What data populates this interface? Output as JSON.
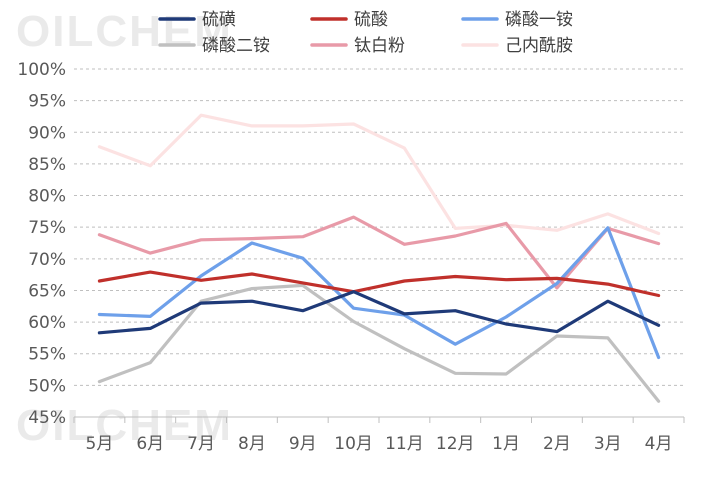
{
  "watermark": "OILCHEM",
  "chart_data": {
    "type": "line",
    "title": "",
    "xlabel": "",
    "ylabel": "",
    "categories": [
      "5月",
      "6月",
      "7月",
      "8月",
      "9月",
      "10月",
      "11月",
      "12月",
      "1月",
      "2月",
      "3月",
      "4月"
    ],
    "ylim": [
      45,
      100
    ],
    "yticks": [
      100,
      95,
      90,
      85,
      80,
      75,
      70,
      65,
      60,
      55,
      50,
      45
    ],
    "ytick_labels": [
      "100%",
      "95%",
      "90%",
      "85%",
      "80%",
      "75%",
      "70%",
      "65%",
      "60%",
      "55%",
      "50%",
      "45%"
    ],
    "grid": true,
    "legend_position": "top",
    "series": [
      {
        "name": "硫磺",
        "color": "#1f3a78",
        "values": [
          58.3,
          59.0,
          63.0,
          63.3,
          61.8,
          64.8,
          61.3,
          61.8,
          59.7,
          58.5,
          63.3,
          59.5
        ]
      },
      {
        "name": "硫酸",
        "color": "#c0302b",
        "values": [
          66.5,
          67.9,
          66.6,
          67.6,
          66.2,
          64.8,
          66.5,
          67.2,
          66.7,
          66.9,
          66.0,
          64.2
        ]
      },
      {
        "name": "磷酸一铵",
        "color": "#6ea0ea",
        "values": [
          61.2,
          60.9,
          67.3,
          72.5,
          70.1,
          62.2,
          61.1,
          56.5,
          60.8,
          66.1,
          74.9,
          54.4
        ]
      },
      {
        "name": "磷酸二铵",
        "color": "#c0c0c0",
        "values": [
          50.6,
          53.6,
          63.3,
          65.3,
          65.8,
          60.1,
          55.8,
          51.9,
          51.8,
          57.8,
          57.5,
          47.5
        ]
      },
      {
        "name": "钛白粉",
        "color": "#e89aa8",
        "values": [
          73.8,
          70.9,
          73.0,
          73.2,
          73.5,
          76.6,
          72.3,
          73.6,
          75.6,
          65.4,
          74.8,
          72.4
        ]
      },
      {
        "name": "己内酰胺",
        "color": "#fce2e2",
        "values": [
          87.7,
          84.7,
          92.7,
          91.0,
          91.0,
          91.3,
          87.5,
          74.8,
          75.3,
          74.5,
          77.1,
          74.0
        ]
      }
    ]
  }
}
